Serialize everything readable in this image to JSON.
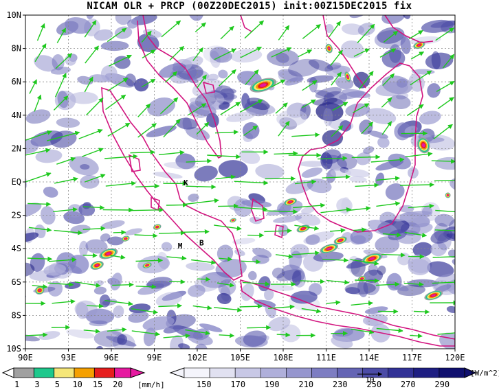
{
  "title": "NICAM OLR + PRCP (00Z20DEC2015) init:00Z15DEC2015 fix",
  "axes": {
    "lon_labels": [
      "90E",
      "93E",
      "96E",
      "99E",
      "102E",
      "105E",
      "108E",
      "111E",
      "114E",
      "117E",
      "120E"
    ],
    "lat_labels": [
      "10N",
      "8N",
      "6N",
      "4N",
      "2N",
      "EQ",
      "2S",
      "4S",
      "6S",
      "8S",
      "10S"
    ]
  },
  "station_markers": [
    {
      "label": "K",
      "lon": 101.2,
      "lat": -0.2
    },
    {
      "label": "M",
      "lon": 100.8,
      "lat": -4.0
    },
    {
      "label": "B",
      "lon": 102.3,
      "lat": -3.8
    }
  ],
  "precip_colorbar": {
    "unit": "[mm/h]",
    "ticks": [
      "1",
      "3",
      "5",
      "10",
      "15",
      "20"
    ],
    "colors": [
      "#a0a0a0",
      "#1ec88c",
      "#f5e678",
      "#f5a000",
      "#e61e1e",
      "#e619a0"
    ]
  },
  "olr_colorbar": {
    "unit": "[W/m^2]",
    "ticks": [
      "150",
      "170",
      "190",
      "210",
      "230",
      "250",
      "270",
      "290"
    ],
    "colors": [
      "#f4f4fb",
      "#e1e1f1",
      "#c8c8e6",
      "#afafda",
      "#9696ce",
      "#7d7dc2",
      "#6464b4",
      "#4b4ba6",
      "#323296",
      "#1e1e82",
      "#0f0f6e"
    ]
  },
  "vector_reference": {
    "label": "10"
  },
  "colors": {
    "coastline": "#d2147f",
    "wind_vectors": "#1ec81e",
    "grid": "#888888"
  }
}
